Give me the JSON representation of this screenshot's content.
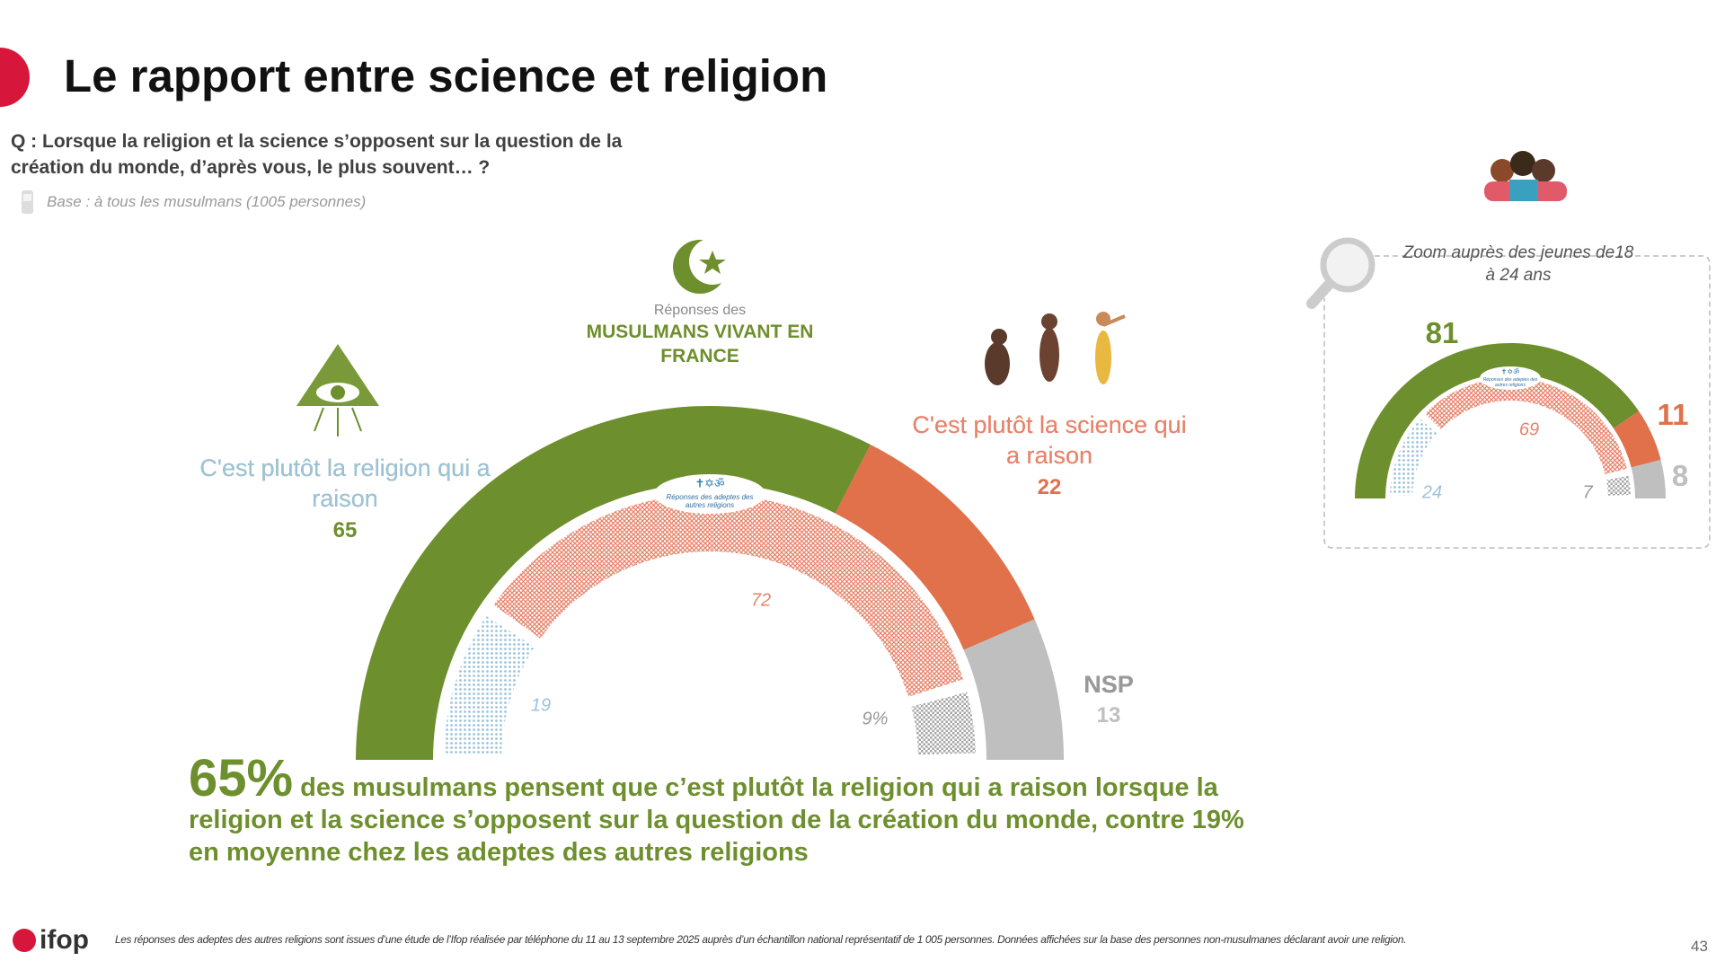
{
  "slide": {
    "title": "Le rapport entre science et religion",
    "question": "Q : Lorsque la religion et la science s’opposent sur la question de la création du monde, d’après vous, le plus souvent… ?",
    "base": "Base : à tous les musulmans (1005 personnes)",
    "conclusion": {
      "highlight": "65%",
      "text": "des musulmans pensent que c’est plutôt la religion qui a raison lorsque la religion et la science s’opposent sur la question de la création du monde, contre 19% en moyenne chez les adeptes des autres religions"
    },
    "logo": "ifop",
    "footnote": "Les réponses des adeptes des autres religions sont issues d’une étude de l’Ifop réalisée par téléphone du 11 au 13 septembre 2025 auprès d’un échantillon national représentatif de 1 005 personnes. Données affichées sur la base des personnes non-musulmanes déclarant avoir une religion.",
    "page": "43"
  },
  "chart_data": [
    {
      "type": "semi-donut",
      "subtitle": "Réponses des",
      "categories": [
        "C'est plutôt la religion qui a raison",
        "C'est plutôt la science qui a raison",
        "NSP"
      ],
      "series": [
        {
          "name": "MUSULMANS VIVANT EN FRANCE",
          "colors": [
            "#6e8f2d",
            "#e0714b",
            "#bfbfbf"
          ],
          "values": [
            65,
            22,
            13
          ]
        },
        {
          "name": "Réponses des adeptes des autres religions",
          "colors": [
            "#9cc3dc",
            "#e8836a",
            "#a6a6a6"
          ],
          "values": [
            19,
            72,
            9
          ],
          "value_labels": [
            "19",
            "72",
            "9%"
          ]
        }
      ]
    },
    {
      "type": "semi-donut",
      "title": "Zoom auprès des jeunes de18 à 24 ans",
      "categories": [
        null,
        null,
        null
      ],
      "series": [
        {
          "colors": [
            "#6e8f2d",
            "#e0714b",
            "#bfbfbf"
          ],
          "values": [
            81,
            11,
            8
          ]
        },
        {
          "name": "Réponses des adeptes des autres religions",
          "colors": [
            "#9cc3dc",
            "#e8836a",
            "#a6a6a6"
          ],
          "values": [
            24,
            69,
            7
          ]
        }
      ]
    }
  ]
}
